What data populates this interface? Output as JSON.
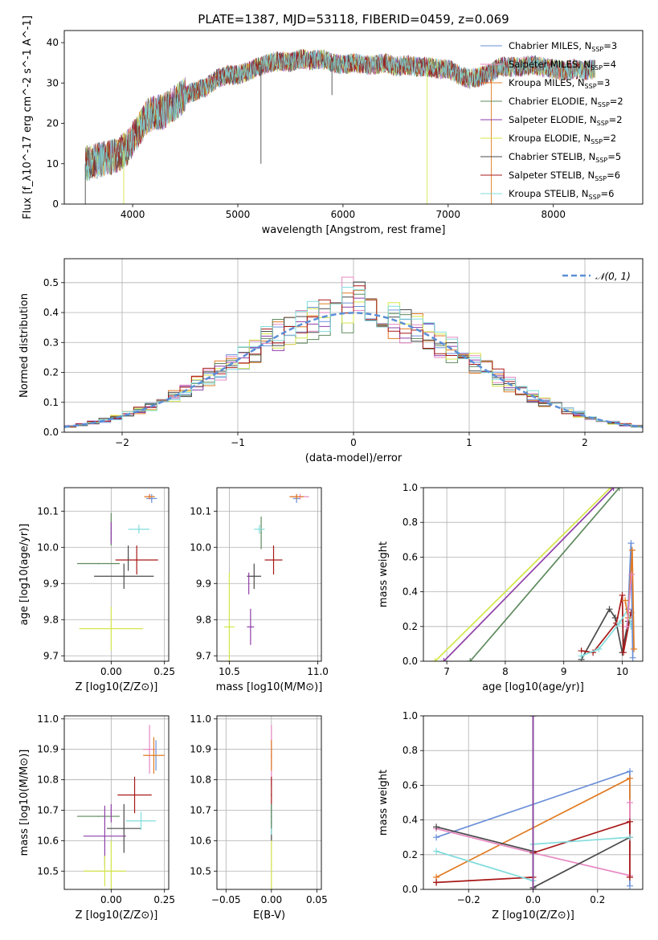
{
  "figure_title": "PLATE=1387, MJD=53118, FIBERID=0459, z=0.069",
  "colors": {
    "Chabrier MILES": "#6a8fd8",
    "Salpeter MILES": "#e788c2",
    "Kroupa MILES": "#e07b22",
    "Chabrier ELODIE": "#5e8a5e",
    "Salpeter ELODIE": "#8e3ea8",
    "Kroupa ELODIE": "#d4e64a",
    "Chabrier STELIB": "#4a4a4a",
    "Salpeter STELIB": "#a81818",
    "Kroupa STELIB": "#82dcdc"
  },
  "chart_data": [
    {
      "id": "spectrum",
      "type": "line",
      "title": "PLATE=1387, MJD=53118, FIBERID=0459, z=0.069",
      "xlabel": "wavelength [Angstrom, rest frame]",
      "ylabel": "Flux [f_λ10^-17 erg cm^-2 s^-1 A^-1]",
      "xlim": [
        3350,
        8850
      ],
      "ylim": [
        0,
        43
      ],
      "xticks": [
        "4000",
        "5000",
        "6000",
        "7000",
        "8000"
      ],
      "yticks": [
        "0",
        "10",
        "20",
        "30",
        "40"
      ],
      "legend_placement": "upper-right",
      "legend": [
        {
          "label": "Chabrier MILES, N",
          "sub": "SSP",
          "suffix": "=3"
        },
        {
          "label": "Salpeter MILES, N",
          "sub": "SSP",
          "suffix": "=4"
        },
        {
          "label": "Kroupa MILES, N",
          "sub": "SSP",
          "suffix": "=3"
        },
        {
          "label": "Chabrier ELODIE, N",
          "sub": "SSP",
          "suffix": "=2"
        },
        {
          "label": "Salpeter ELODIE, N",
          "sub": "SSP",
          "suffix": "=2"
        },
        {
          "label": "Kroupa ELODIE, N",
          "sub": "SSP",
          "suffix": "=2"
        },
        {
          "label": "Chabrier STELIB, N",
          "sub": "SSP",
          "suffix": "=5"
        },
        {
          "label": "Salpeter STELIB, N",
          "sub": "SSP",
          "suffix": "=6"
        },
        {
          "label": "Kroupa STELIB, N",
          "sub": "SSP",
          "suffix": "=6"
        }
      ],
      "envelope": {
        "x": [
          3550,
          3700,
          3850,
          3950,
          4050,
          4150,
          4300,
          4400,
          4500,
          4700,
          4800,
          4900,
          5000,
          5100,
          5200,
          5300,
          5400,
          5500,
          5600,
          5700,
          5800,
          5900,
          6000,
          6100,
          6200,
          6300,
          6400,
          6500,
          6600,
          6700,
          6800,
          6900,
          7000,
          7100,
          7200,
          7300,
          7400,
          7500,
          7600,
          7700,
          7800,
          7900,
          8000,
          8100,
          8200,
          8300,
          8400
        ],
        "y": [
          10,
          11,
          12,
          14,
          18,
          22,
          23,
          25,
          27,
          29,
          31,
          32,
          32,
          33,
          34,
          35,
          35.5,
          35,
          36,
          35.5,
          36,
          35,
          34.5,
          35,
          34.5,
          34.5,
          35,
          34,
          34.5,
          34,
          34,
          33.5,
          33.5,
          32,
          31,
          31.5,
          32.5,
          34,
          34,
          34,
          34.5,
          34,
          33.5,
          33,
          33.5,
          33,
          33.5
        ]
      },
      "spikes": [
        {
          "series": "Kroupa ELODIE",
          "x": 3915,
          "to": 0
        },
        {
          "series": "Kroupa ELODIE",
          "x": 6800,
          "to": 0
        },
        {
          "series": "Kroupa MILES",
          "x": 7410,
          "to": 0
        },
        {
          "series": "Chabrier STELIB",
          "x": 5220,
          "to": 10
        },
        {
          "series": "Chabrier STELIB",
          "x": 5895,
          "to": 27
        },
        {
          "series": "Chabrier STELIB",
          "x": 3550,
          "to": 0
        }
      ]
    },
    {
      "id": "residual_hist",
      "type": "bar",
      "xlabel": "(data-model)/error",
      "ylabel": "Normed distribution",
      "xlim": [
        -2.5,
        2.5
      ],
      "ylim": [
        0,
        0.58
      ],
      "xticks": [
        "−2",
        "−1",
        "0",
        "1",
        "2"
      ],
      "yticks": [
        "0.0",
        "0.1",
        "0.2",
        "0.3",
        "0.4",
        "0.5"
      ],
      "bin_width": 0.1,
      "legend": [
        {
          "label": "𝒩(0, 1)",
          "style": "dashed"
        }
      ],
      "legend_placement": "upper-right",
      "gaussian": {
        "mean": 0,
        "sigma": 1
      }
    },
    {
      "id": "age_vs_Z",
      "type": "scatter",
      "xlabel": "Z [log10(Z/Z⊙)]",
      "ylabel": "age [log10(age/yr)]",
      "xlim": [
        -0.22,
        0.27
      ],
      "ylim": [
        9.685,
        10.165
      ],
      "xticks": [
        "0.00",
        "0.25"
      ],
      "yticks": [
        "9.7",
        "9.8",
        "9.9",
        "10.0",
        "10.1"
      ],
      "points": [
        {
          "series": "Chabrier MILES",
          "x": 0.19,
          "y": 10.135,
          "xerr": 0.025,
          "yerr": 0.012
        },
        {
          "series": "Salpeter MILES",
          "x": 0.18,
          "y": 10.14,
          "xerr": 0.02,
          "yerr": 0.008
        },
        {
          "series": "Kroupa MILES",
          "x": 0.18,
          "y": 10.14,
          "xerr": 0.025,
          "yerr": 0.006
        },
        {
          "series": "Chabrier ELODIE",
          "x": 0.0,
          "y": 10.05,
          "xerr": 0.0,
          "yerr": 0.045
        },
        {
          "series": "Salpeter ELODIE",
          "x": 0.0,
          "y": 10.04,
          "xerr": 0.0,
          "yerr": 0.03
        },
        {
          "series": "Kroupa ELODIE",
          "x": 0.0,
          "y": 9.775,
          "xerr": 0.15,
          "yerr": 0.06
        },
        {
          "series": "Chabrier STELIB",
          "x": 0.06,
          "y": 9.92,
          "xerr": 0.14,
          "yerr": 0.035
        },
        {
          "series": "Salpeter STELIB",
          "x": 0.12,
          "y": 9.965,
          "xerr": 0.1,
          "yerr": 0.04
        },
        {
          "series": "Kroupa STELIB",
          "x": 0.13,
          "y": 10.05,
          "xerr": 0.05,
          "yerr": 0.012
        },
        {
          "series": "Chabrier ELODIE",
          "x": -0.06,
          "y": 9.955,
          "xerr": 0.1,
          "yerr": 0.0
        },
        {
          "series": "Chabrier STELIB",
          "x": 0.08,
          "y": 9.97,
          "xerr": 0.0,
          "yerr": 0.035
        }
      ]
    },
    {
      "id": "age_vs_mass",
      "type": "scatter",
      "xlabel": "mass [log10(M/M⊙)]",
      "ylabel": "",
      "xlim": [
        10.43,
        11.02
      ],
      "ylim": [
        9.685,
        10.165
      ],
      "xticks": [
        "10.5",
        "11.0"
      ],
      "yticks": [
        "9.7",
        "9.8",
        "9.9",
        "10.0",
        "10.1"
      ],
      "points": [
        {
          "series": "Chabrier MILES",
          "x": 10.88,
          "y": 10.135,
          "xerr": 0.02,
          "yerr": 0.012
        },
        {
          "series": "Salpeter MILES",
          "x": 10.9,
          "y": 10.14,
          "xerr": 0.05,
          "yerr": 0.008
        },
        {
          "series": "Kroupa MILES",
          "x": 10.88,
          "y": 10.14,
          "xerr": 0.04,
          "yerr": 0.007
        },
        {
          "series": "Chabrier ELODIE",
          "x": 10.68,
          "y": 10.04,
          "xerr": 0.0,
          "yerr": 0.045
        },
        {
          "series": "Salpeter ELODIE",
          "x": 10.62,
          "y": 9.78,
          "xerr": 0.02,
          "yerr": 0.05
        },
        {
          "series": "Kroupa ELODIE",
          "x": 10.5,
          "y": 9.78,
          "xerr": 0.03,
          "yerr": 0.15
        },
        {
          "series": "Chabrier STELIB",
          "x": 10.64,
          "y": 9.92,
          "xerr": 0.04,
          "yerr": 0.035
        },
        {
          "series": "Salpeter STELIB",
          "x": 10.75,
          "y": 9.965,
          "xerr": 0.05,
          "yerr": 0.04
        },
        {
          "series": "Kroupa STELIB",
          "x": 10.67,
          "y": 10.05,
          "xerr": 0.03,
          "yerr": 0.012
        },
        {
          "series": "Salpeter ELODIE",
          "x": 10.61,
          "y": 9.9,
          "xerr": 0.0,
          "yerr": 0.03
        }
      ]
    },
    {
      "id": "weight_vs_age",
      "type": "line",
      "xlabel": "age [log10(age/yr)]",
      "ylabel": "mass weight",
      "xlim": [
        6.6,
        10.35
      ],
      "ylim": [
        0,
        1.0
      ],
      "xticks": [
        "7",
        "8",
        "9",
        "10"
      ],
      "yticks": [
        "0.0",
        "0.2",
        "0.4",
        "0.6",
        "0.8",
        "1.0"
      ],
      "series": [
        {
          "name": "Kroupa ELODIE",
          "x": [
            6.8,
            9.8
          ],
          "y": [
            0,
            1.0
          ]
        },
        {
          "name": "Salpeter ELODIE",
          "x": [
            6.95,
            9.85
          ],
          "y": [
            0,
            1.0
          ]
        },
        {
          "name": "Chabrier ELODIE",
          "x": [
            7.4,
            9.95
          ],
          "y": [
            0,
            1.0
          ]
        },
        {
          "name": "Chabrier STELIB",
          "x": [
            9.3,
            9.78,
            9.88,
            10.0,
            10.1
          ],
          "y": [
            0.01,
            0.3,
            0.25,
            0.05,
            0.23
          ]
        },
        {
          "name": "Salpeter STELIB",
          "x": [
            9.3,
            9.5,
            9.9,
            10.0,
            10.02,
            10.15
          ],
          "y": [
            0.06,
            0.05,
            0.22,
            0.38,
            0.05,
            0.28
          ]
        },
        {
          "name": "Kroupa STELIB",
          "x": [
            9.3,
            9.6,
            9.95,
            10.1,
            10.15
          ],
          "y": [
            0.03,
            0.07,
            0.22,
            0.3,
            0.2
          ]
        },
        {
          "name": "Chabrier MILES",
          "x": [
            10.1,
            10.15,
            10.18
          ],
          "y": [
            0.3,
            0.68,
            0.02
          ]
        },
        {
          "name": "Kroupa MILES",
          "x": [
            10.05,
            10.1,
            10.17,
            10.2
          ],
          "y": [
            0.35,
            0.25,
            0.64,
            0.07
          ]
        },
        {
          "name": "Salpeter MILES",
          "x": [
            10.08,
            10.16
          ],
          "y": [
            0.2,
            0.5
          ]
        }
      ]
    },
    {
      "id": "mass_vs_Z",
      "type": "scatter",
      "xlabel": "Z [log10(Z/Z⊙)]",
      "ylabel": "mass [log10(M/M⊙)]",
      "xlim": [
        -0.22,
        0.27
      ],
      "ylim": [
        10.44,
        11.01
      ],
      "xticks": [
        "0.00",
        "0.25"
      ],
      "yticks": [
        "10.5",
        "10.6",
        "10.7",
        "10.8",
        "10.9",
        "11.0"
      ],
      "points": [
        {
          "series": "Chabrier MILES",
          "x": 0.21,
          "y": 10.88,
          "xerr": 0.0,
          "yerr": 0.05
        },
        {
          "series": "Salpeter MILES",
          "x": 0.18,
          "y": 10.9,
          "xerr": 0.03,
          "yerr": 0.08
        },
        {
          "series": "Kroupa MILES",
          "x": 0.2,
          "y": 10.88,
          "xerr": 0.05,
          "yerr": 0.06
        },
        {
          "series": "Chabrier ELODIE",
          "x": -0.06,
          "y": 10.68,
          "xerr": 0.1,
          "yerr": 0.0
        },
        {
          "series": "Salpeter ELODIE",
          "x": -0.03,
          "y": 10.615,
          "xerr": 0.1,
          "yerr": 0.1
        },
        {
          "series": "Kroupa ELODIE",
          "x": -0.03,
          "y": 10.5,
          "xerr": 0.1,
          "yerr": 0.05
        },
        {
          "series": "Chabrier STELIB",
          "x": 0.06,
          "y": 10.64,
          "xerr": 0.08,
          "yerr": 0.08
        },
        {
          "series": "Salpeter STELIB",
          "x": 0.11,
          "y": 10.75,
          "xerr": 0.08,
          "yerr": 0.06
        },
        {
          "series": "Kroupa STELIB",
          "x": 0.14,
          "y": 10.665,
          "xerr": 0.07,
          "yerr": 0.03
        },
        {
          "series": "Salpeter ELODIE",
          "x": 0.0,
          "y": 10.69,
          "xerr": 0.0,
          "yerr": 0.03
        },
        {
          "series": "Kroupa ELODIE",
          "x": 0.0,
          "y": 10.52,
          "xerr": 0.0,
          "yerr": 0.08
        }
      ]
    },
    {
      "id": "mass_vs_EBV",
      "type": "scatter",
      "xlabel": "E(B-V)",
      "ylabel": "",
      "xlim": [
        -0.06,
        0.055
      ],
      "ylim": [
        10.44,
        11.01
      ],
      "xticks": [
        "−0.05",
        "0.00",
        "0.05"
      ],
      "yticks": [
        "10.5",
        "10.6",
        "10.7",
        "10.8",
        "10.9",
        "11.0"
      ],
      "points": [
        {
          "series": "Salpeter MILES",
          "x": 0.0,
          "y": 10.88,
          "xerr": 0.0,
          "yerr": 0.1
        },
        {
          "series": "Kroupa MILES",
          "x": 0.0,
          "y": 10.88,
          "xerr": 0.0,
          "yerr": 0.05
        },
        {
          "series": "Salpeter STELIB",
          "x": 0.0,
          "y": 10.75,
          "xerr": 0.0,
          "yerr": 0.06
        },
        {
          "series": "Chabrier STELIB",
          "x": 0.0,
          "y": 10.66,
          "xerr": 0.0,
          "yerr": 0.06
        },
        {
          "series": "Kroupa STELIB",
          "x": 0.0,
          "y": 10.67,
          "xerr": 0.0,
          "yerr": 0.05
        },
        {
          "series": "Kroupa ELODIE",
          "x": 0.0,
          "y": 10.52,
          "xerr": 0.0,
          "yerr": 0.08
        },
        {
          "series": "Chabrier ELODIE",
          "x": 0.0,
          "y": 10.68,
          "xerr": 0.0,
          "yerr": 0.04
        }
      ]
    },
    {
      "id": "weight_vs_Z",
      "type": "line",
      "xlabel": "Z [log10(Z/Z⊙)]",
      "ylabel": "mass weight",
      "xlim": [
        -0.34,
        0.34
      ],
      "ylim": [
        0,
        1.0
      ],
      "xticks": [
        "−0.2",
        "0.0",
        "0.2"
      ],
      "yticks": [
        "0.0",
        "0.2",
        "0.4",
        "0.6",
        "0.8",
        "1.0"
      ],
      "series": [
        {
          "name": "Chabrier MILES",
          "x": [
            -0.3,
            0.3,
            0.3
          ],
          "y": [
            0.3,
            0.68,
            0.02
          ]
        },
        {
          "name": "Kroupa MILES",
          "x": [
            -0.3,
            0.3,
            0.3
          ],
          "y": [
            0.07,
            0.64,
            0.07
          ]
        },
        {
          "name": "Salpeter MILES",
          "x": [
            -0.3,
            0.0,
            0.3,
            0.3
          ],
          "y": [
            0.35,
            0.21,
            0.08,
            0.5
          ]
        },
        {
          "name": "Chabrier STELIB",
          "x": [
            -0.3,
            0.0,
            0.0,
            0.3
          ],
          "y": [
            0.36,
            0.22,
            0.01,
            0.3
          ]
        },
        {
          "name": "Salpeter STELIB",
          "x": [
            -0.3,
            -0.3,
            0.0,
            0.0,
            0.3,
            0.3
          ],
          "y": [
            0.04,
            0.04,
            0.07,
            0.21,
            0.39,
            0.07
          ]
        },
        {
          "name": "Kroupa STELIB",
          "x": [
            -0.3,
            0.0,
            0.0,
            0.3
          ],
          "y": [
            0.22,
            0.05,
            0.26,
            0.3
          ]
        },
        {
          "name": "Kroupa ELODIE",
          "x": [
            0.0,
            0.0
          ],
          "y": [
            0.0,
            1.0
          ]
        },
        {
          "name": "Chabrier ELODIE",
          "x": [
            0.0,
            0.0
          ],
          "y": [
            0.0,
            1.0
          ]
        },
        {
          "name": "Salpeter ELODIE",
          "x": [
            0.0,
            0.0
          ],
          "y": [
            0.0,
            1.0
          ]
        }
      ]
    }
  ]
}
